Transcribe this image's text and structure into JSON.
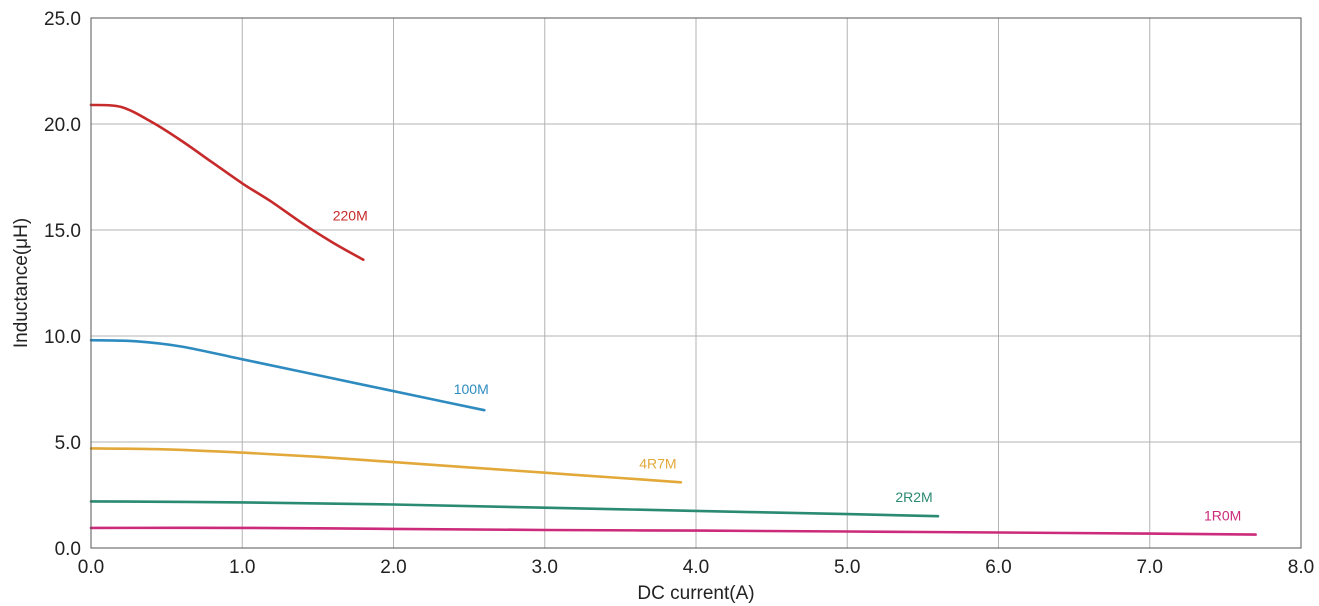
{
  "chart_data": {
    "type": "line",
    "title": "",
    "xlabel": "DC current(A)",
    "ylabel": "Inductance(μH)",
    "xlim": [
      0,
      8
    ],
    "ylim": [
      0,
      25
    ],
    "x_ticks": [
      "0.0",
      "1.0",
      "2.0",
      "3.0",
      "4.0",
      "5.0",
      "6.0",
      "7.0",
      "8.0"
    ],
    "y_ticks": [
      "0.0",
      "5.0",
      "10.0",
      "15.0",
      "20.0",
      "25.0"
    ],
    "grid": true,
    "legend": "labels placed at the end of each curve",
    "series": [
      {
        "name": "220M",
        "color": "#c62a2a",
        "x": [
          0,
          0.2,
          0.4,
          0.6,
          0.8,
          1.0,
          1.2,
          1.4,
          1.6,
          1.8
        ],
        "y": [
          20.9,
          20.8,
          20.1,
          19.2,
          18.2,
          17.2,
          16.3,
          15.3,
          14.4,
          13.6
        ]
      },
      {
        "name": "100M",
        "color": "#2e8bc0",
        "x": [
          0,
          0.3,
          0.6,
          1.0,
          1.4,
          1.8,
          2.2,
          2.6
        ],
        "y": [
          9.8,
          9.75,
          9.5,
          8.9,
          8.3,
          7.7,
          7.1,
          6.5
        ]
      },
      {
        "name": "4R7M",
        "color": "#e2a93a",
        "x": [
          0,
          0.5,
          1.0,
          1.5,
          2.0,
          2.5,
          3.0,
          3.5,
          3.9
        ],
        "y": [
          4.7,
          4.65,
          4.5,
          4.3,
          4.05,
          3.8,
          3.55,
          3.3,
          3.1
        ]
      },
      {
        "name": "2R2M",
        "color": "#2a8a72",
        "x": [
          0,
          1.0,
          2.0,
          3.0,
          4.0,
          5.0,
          5.6
        ],
        "y": [
          2.2,
          2.15,
          2.05,
          1.9,
          1.75,
          1.6,
          1.5
        ]
      },
      {
        "name": "1R0M",
        "color": "#cc2a7a",
        "x": [
          0,
          1.0,
          2.0,
          3.0,
          4.0,
          5.0,
          6.0,
          7.0,
          7.7
        ],
        "y": [
          0.95,
          0.95,
          0.9,
          0.85,
          0.82,
          0.78,
          0.73,
          0.68,
          0.63
        ]
      }
    ]
  }
}
